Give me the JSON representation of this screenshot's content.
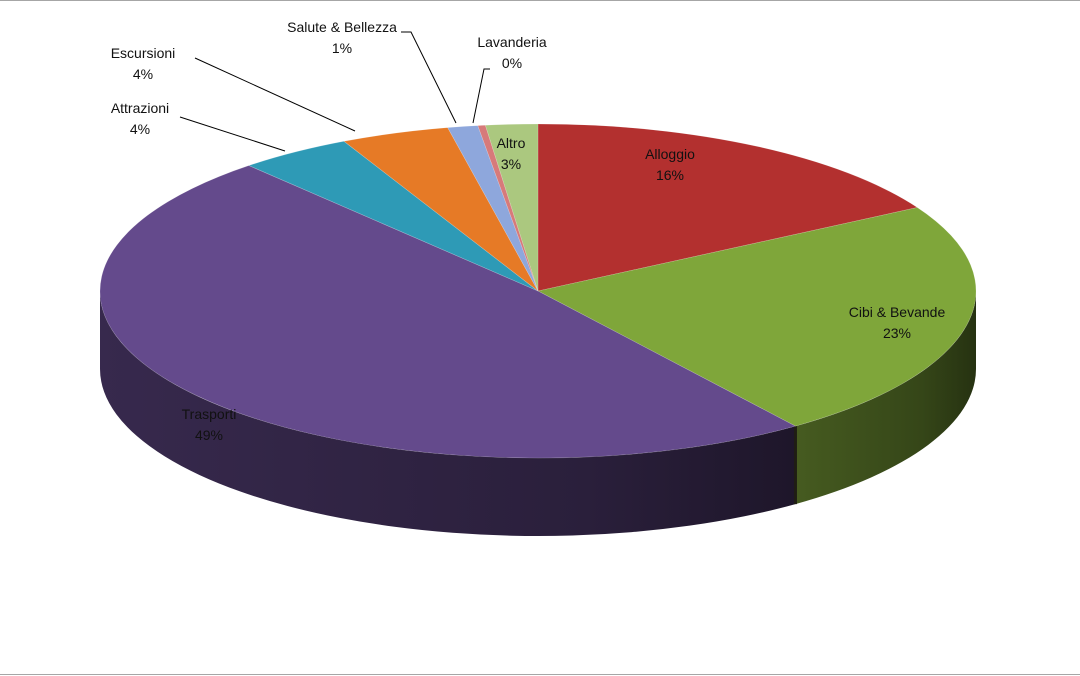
{
  "chart_data": {
    "type": "pie",
    "style": "3d",
    "title": "",
    "slices": [
      {
        "label": "Alloggio",
        "value": 16,
        "value_label": "16%",
        "color": "#b3302f"
      },
      {
        "label": "Cibi & Bevande",
        "value": 23,
        "value_label": "23%",
        "color": "#7fa63a"
      },
      {
        "label": "Trasporti",
        "value": 49,
        "value_label": "49%",
        "color": "#644a8c"
      },
      {
        "label": "Attrazioni",
        "value": 4,
        "value_label": "4%",
        "color": "#2e9ab6"
      },
      {
        "label": "Escursioni",
        "value": 4,
        "value_label": "4%",
        "color": "#e67a26"
      },
      {
        "label": "Salute & Bellezza",
        "value": 1,
        "value_label": "1%",
        "color": "#8ea7dc"
      },
      {
        "label": "Lavanderia",
        "value": 0,
        "value_label": "0%",
        "color": "#d77a7a"
      },
      {
        "label": "Altro",
        "value": 3,
        "value_label": "3%",
        "color": "#abc87f"
      }
    ]
  }
}
